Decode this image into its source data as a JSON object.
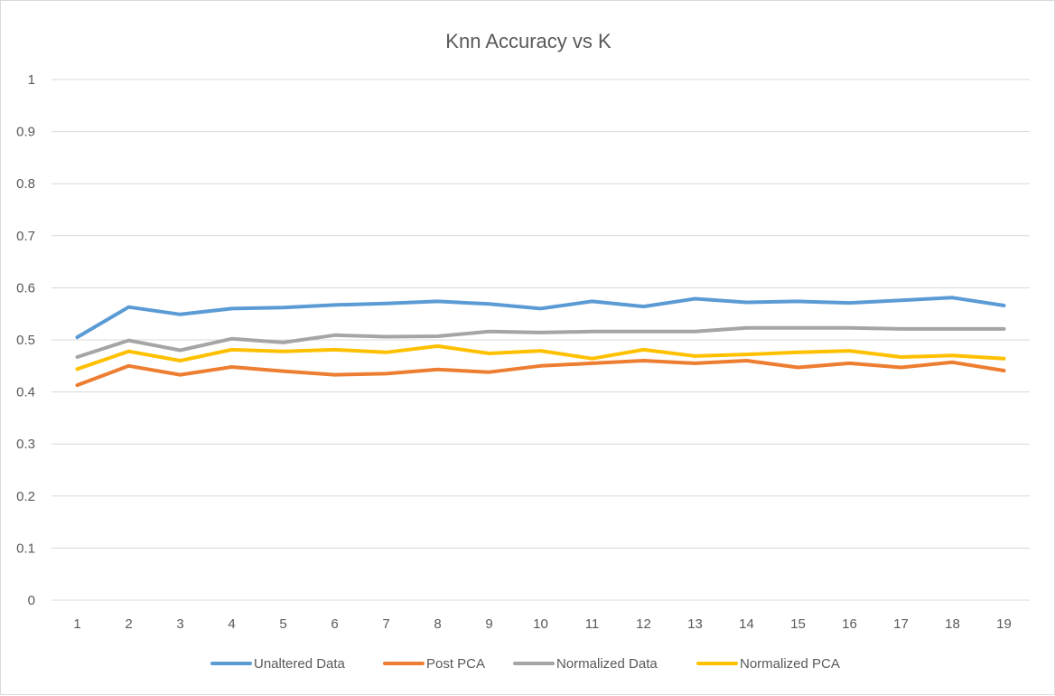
{
  "chart_data": {
    "type": "line",
    "title": "Knn Accuracy vs K",
    "xlabel": "",
    "ylabel": "",
    "x": [
      1,
      2,
      3,
      4,
      5,
      6,
      7,
      8,
      9,
      10,
      11,
      12,
      13,
      14,
      15,
      16,
      17,
      18,
      19
    ],
    "x_tick_labels": [
      "1",
      "2",
      "3",
      "4",
      "5",
      "6",
      "7",
      "8",
      "9",
      "10",
      "11",
      "12",
      "13",
      "14",
      "15",
      "16",
      "17",
      "18",
      "19"
    ],
    "ylim": [
      0,
      1
    ],
    "y_tick_labels": [
      "0",
      "0.1",
      "0.2",
      "0.3",
      "0.4",
      "0.5",
      "0.6",
      "0.7",
      "0.8",
      "0.9",
      "1"
    ],
    "y_ticks": [
      0,
      0.1,
      0.2,
      0.3,
      0.4,
      0.5,
      0.6,
      0.7,
      0.8,
      0.9,
      1
    ],
    "grid": "horizontal",
    "legend_position": "bottom",
    "series": [
      {
        "name": "Unaltered Data",
        "color": "#5b9bd5",
        "values": [
          0.505,
          0.563,
          0.549,
          0.56,
          0.562,
          0.567,
          0.57,
          0.574,
          0.569,
          0.56,
          0.574,
          0.564,
          0.579,
          0.572,
          0.574,
          0.571,
          0.576,
          0.581,
          0.566
        ]
      },
      {
        "name": "Post PCA",
        "color": "#ed7d31",
        "values": [
          0.413,
          0.45,
          0.433,
          0.448,
          0.44,
          0.433,
          0.435,
          0.443,
          0.438,
          0.45,
          0.455,
          0.46,
          0.455,
          0.46,
          0.447,
          0.455,
          0.447,
          0.457,
          0.441
        ]
      },
      {
        "name": "Normalized Data",
        "color": "#a5a5a5",
        "values": [
          0.467,
          0.499,
          0.48,
          0.502,
          0.495,
          0.509,
          0.506,
          0.507,
          0.516,
          0.514,
          0.516,
          0.516,
          0.516,
          0.523,
          0.523,
          0.523,
          0.521,
          0.521,
          0.521
        ]
      },
      {
        "name": "Normalized PCA",
        "color": "#ffc000",
        "values": [
          0.444,
          0.478,
          0.46,
          0.481,
          0.478,
          0.481,
          0.476,
          0.488,
          0.474,
          0.479,
          0.464,
          0.481,
          0.469,
          0.472,
          0.476,
          0.479,
          0.467,
          0.47,
          0.464
        ]
      }
    ]
  }
}
